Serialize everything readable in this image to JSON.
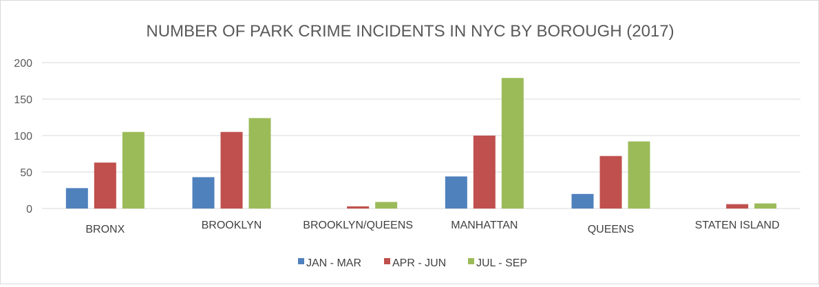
{
  "chart_data": {
    "type": "bar",
    "title": "NUMBER OF PARK CRIME INCIDENTS IN NYC BY BOROUGH (2017)",
    "xlabel": "",
    "ylabel": "",
    "categories": [
      "BRONX",
      "BROOKLYN",
      "BROOKLYN/QUEENS",
      "MANHATTAN",
      "QUEENS",
      "STATEN ISLAND"
    ],
    "series": [
      {
        "name": "JAN - MAR",
        "color": "#4f81bd",
        "values": [
          28,
          43,
          0,
          44,
          20,
          0
        ]
      },
      {
        "name": "APR - JUN",
        "color": "#c0504d",
        "values": [
          63,
          105,
          3,
          100,
          72,
          6
        ]
      },
      {
        "name": "JUL - SEP",
        "color": "#9bbb59",
        "values": [
          105,
          124,
          9,
          179,
          92,
          7
        ]
      }
    ],
    "ylim": [
      0,
      200
    ],
    "yticks": [
      "0",
      "50",
      "100",
      "150",
      "200"
    ],
    "grid": true,
    "legend_position": "bottom"
  }
}
